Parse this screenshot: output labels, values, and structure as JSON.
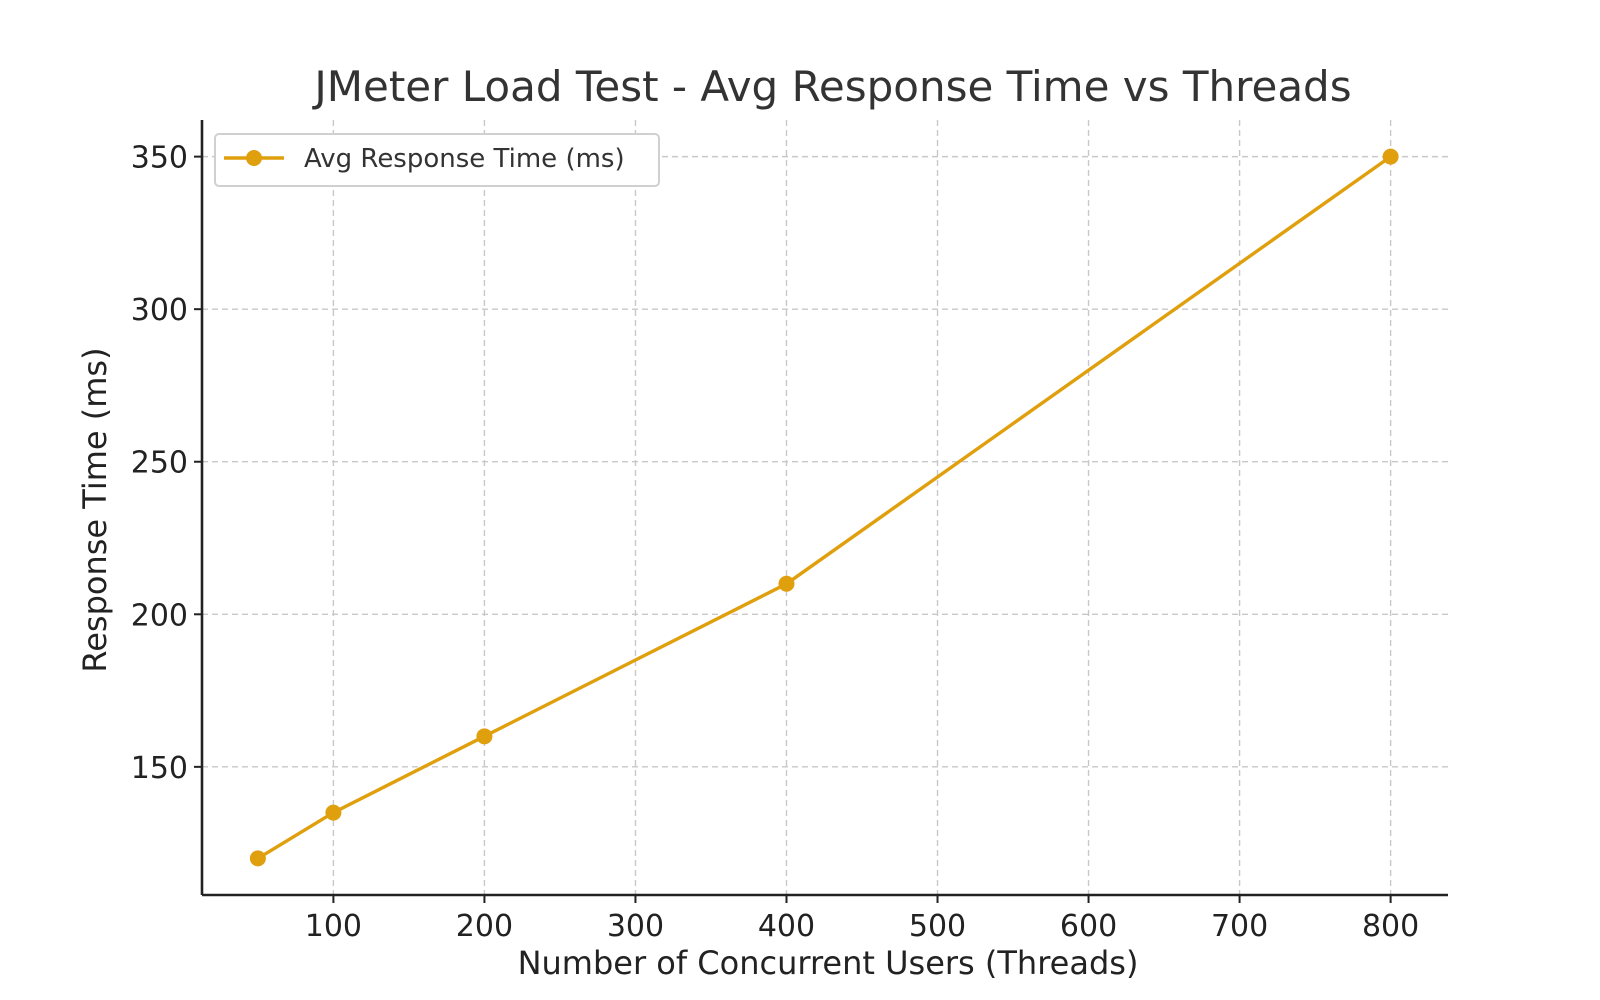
{
  "chart_data": {
    "type": "line",
    "title": "JMeter Load Test - Avg Response Time vs Threads",
    "xlabel": "Number of Concurrent Users (Threads)",
    "ylabel": "Response Time (ms)",
    "x": [
      50,
      100,
      200,
      400,
      800
    ],
    "series": [
      {
        "name": "Avg Response Time (ms)",
        "values": [
          120,
          135,
          160,
          210,
          350
        ],
        "color": "#e09f0d"
      }
    ],
    "xticks": [
      100,
      200,
      300,
      400,
      500,
      600,
      700,
      800
    ],
    "yticks": [
      150,
      200,
      250,
      300,
      350
    ],
    "xlim": [
      13,
      838
    ],
    "ylim": [
      108,
      362
    ],
    "grid": true,
    "legend": "top-left"
  }
}
